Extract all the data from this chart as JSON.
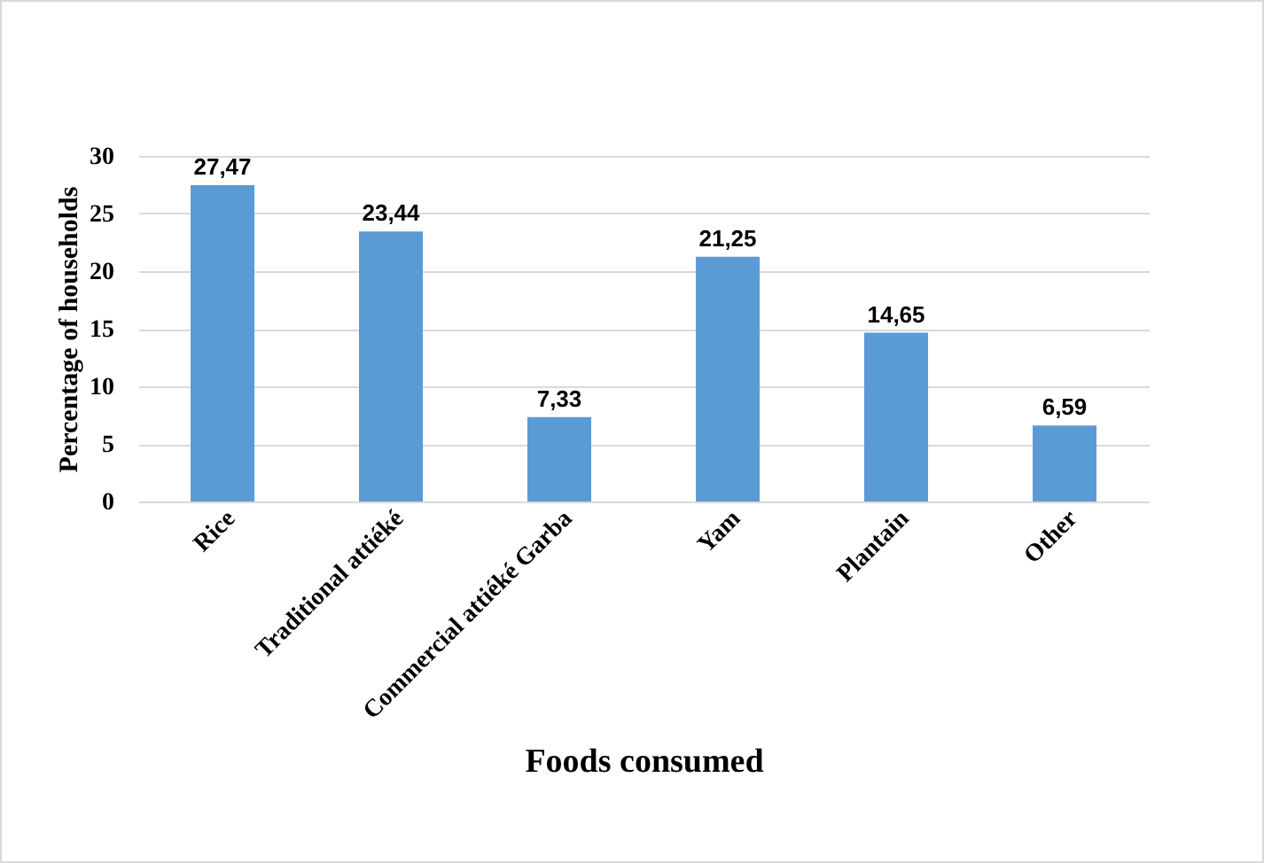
{
  "chart_data": {
    "type": "bar",
    "xlabel": "Foods consumed",
    "ylabel": "Percentage of households",
    "categories": [
      "Rice",
      "Traditional attiéké",
      "Commercial attiéké Garba",
      "Yam",
      "Plantain",
      "Other"
    ],
    "values": [
      27.47,
      23.44,
      7.33,
      21.25,
      14.65,
      6.59
    ],
    "value_labels": [
      "27,47",
      "23,44",
      "7,33",
      "21,25",
      "14,65",
      "6,59"
    ],
    "color": "#5b9bd5",
    "ylim": [
      0,
      30
    ],
    "yticks": [
      0,
      5,
      10,
      15,
      20,
      25,
      30
    ],
    "grid": "y"
  }
}
